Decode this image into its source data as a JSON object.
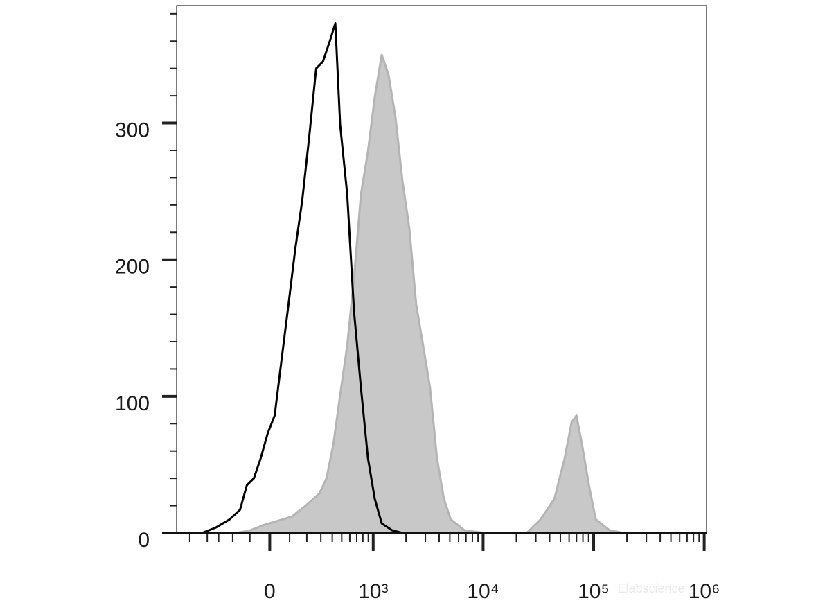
{
  "chart_data": {
    "type": "histogram-overlay",
    "xscale": "biexponential",
    "xlim": [
      -800,
      1050000
    ],
    "ylim": [
      0,
      386
    ],
    "xticks": [
      0,
      {
        "value": 1000,
        "label": "10³"
      },
      {
        "value": 10000,
        "label": "10⁴"
      },
      {
        "value": 100000,
        "label": "10⁵"
      },
      {
        "value": 1000000,
        "label": "10⁶"
      }
    ],
    "xminorticks": [
      -600,
      -400,
      -300,
      -200,
      -100,
      100,
      200,
      300,
      400,
      500,
      600,
      700,
      800,
      900,
      2000,
      3000,
      4000,
      5000,
      6000,
      7000,
      8000,
      9000,
      20000,
      30000,
      40000,
      50000,
      60000,
      70000,
      80000,
      90000,
      200000,
      300000,
      400000,
      500000,
      600000,
      700000,
      800000,
      900000
    ],
    "yticks": [
      0,
      100,
      200,
      300
    ],
    "yminorticks": [
      20,
      40,
      60,
      80,
      120,
      140,
      160,
      180,
      220,
      240,
      260,
      280,
      320,
      340,
      360,
      380
    ],
    "watermark": "Elabscience",
    "series": [
      {
        "color": "#c8c8c8",
        "edge_color": "#b4b4b4",
        "fill": true,
        "x": [
          -176,
          -97,
          -27,
          41,
          112,
          193,
          290,
          347,
          411,
          482,
          566,
          660,
          768,
          893,
          1034,
          1199,
          1387,
          1605,
          1854,
          2143,
          2479,
          2865,
          3309,
          3823,
          4416,
          5097,
          6792,
          10481,
          24816,
          33088,
          44110,
          54755,
          63215,
          69913,
          78443,
          90593,
          104575,
          139590,
          186120,
          1000000
        ],
        "values": [
          0,
          2,
          6,
          9,
          12,
          20,
          29,
          40,
          65,
          101,
          137,
          187,
          248,
          279,
          319,
          350,
          335,
          304,
          258,
          223,
          167,
          137,
          106,
          55,
          25,
          10,
          2,
          0,
          0,
          10,
          25,
          55,
          81,
          86,
          65,
          35,
          10,
          2,
          0,
          0
        ]
      },
      {
        "color": "#000000",
        "fill": false,
        "x": [
          -453,
          -322,
          -220,
          -155,
          -116,
          -79,
          -44,
          -10,
          24,
          58,
          94,
          131,
          171,
          215,
          264,
          317,
          377,
          431,
          482,
          566,
          660,
          768,
          893,
          1034,
          1199,
          1492,
          1854,
          1000000
        ],
        "values": [
          0,
          4,
          10,
          17,
          35,
          40,
          55,
          73,
          86,
          126,
          167,
          208,
          243,
          289,
          340,
          345,
          360,
          373,
          299,
          248,
          162,
          106,
          55,
          25,
          7,
          2,
          0,
          0
        ]
      }
    ]
  }
}
